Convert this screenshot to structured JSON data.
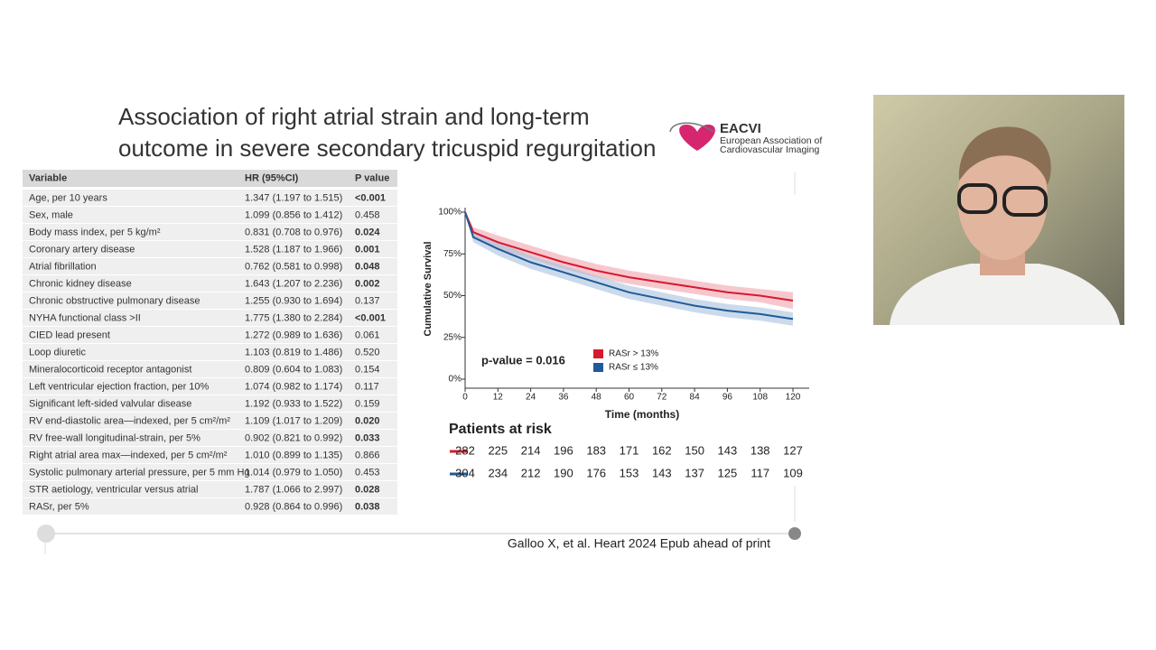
{
  "slide": {
    "title_lines": [
      "Association of right atrial strain and long-term",
      "outcome in severe secondary tricuspid regurgitation"
    ],
    "logo": {
      "name": "EACVI",
      "line1": "European Association of",
      "line2": "Cardiovascular Imaging"
    },
    "citation": "Galloo X, et al. Heart 2024 Epub ahead of print"
  },
  "table": {
    "header": [
      "Variable",
      "HR (95%CI)",
      "P value"
    ],
    "rows": [
      {
        "cells": [
          "Age, per 10 years",
          "1.347 (1.197 to 1.515)",
          "<0.001"
        ],
        "bold": true
      },
      {
        "cells": [
          "Sex, male",
          "1.099 (0.856 to 1.412)",
          "0.458"
        ],
        "bold": false
      },
      {
        "cells": [
          "Body mass index, per 5 kg/m²",
          "0.831 (0.708 to 0.976)",
          "0.024"
        ],
        "bold": true
      },
      {
        "cells": [
          "Coronary artery disease",
          "1.528 (1.187 to 1.966)",
          "0.001"
        ],
        "bold": true
      },
      {
        "cells": [
          "Atrial fibrillation",
          "0.762 (0.581 to 0.998)",
          "0.048"
        ],
        "bold": true
      },
      {
        "cells": [
          "Chronic kidney disease",
          "1.643 (1.207 to 2.236)",
          "0.002"
        ],
        "bold": true
      },
      {
        "cells": [
          "Chronic obstructive pulmonary disease",
          "1.255 (0.930 to 1.694)",
          "0.137"
        ],
        "bold": false
      },
      {
        "cells": [
          "NYHA functional class >II",
          "1.775 (1.380 to 2.284)",
          "<0.001"
        ],
        "bold": true
      },
      {
        "cells": [
          "CIED lead present",
          "1.272 (0.989 to 1.636)",
          "0.061"
        ],
        "bold": false
      },
      {
        "cells": [
          "Loop diuretic",
          "1.103 (0.819 to 1.486)",
          "0.520"
        ],
        "bold": false
      },
      {
        "cells": [
          "Mineralocorticoid receptor antagonist",
          "0.809 (0.604 to 1.083)",
          "0.154"
        ],
        "bold": false
      },
      {
        "cells": [
          "Left ventricular ejection fraction, per 10%",
          "1.074 (0.982 to 1.174)",
          "0.117"
        ],
        "bold": false
      },
      {
        "cells": [
          "Significant left-sided valvular disease",
          "1.192 (0.933 to 1.522)",
          "0.159"
        ],
        "bold": false
      },
      {
        "cells": [
          "RV end-diastolic area—indexed, per 5 cm²/m²",
          "1.109 (1.017 to 1.209)",
          "0.020"
        ],
        "bold": true
      },
      {
        "cells": [
          "RV free-wall longitudinal-strain, per 5%",
          "0.902 (0.821 to 0.992)",
          "0.033"
        ],
        "bold": true
      },
      {
        "cells": [
          "Right atrial area max—indexed, per 5 cm²/m²",
          "1.010 (0.899 to 1.135)",
          "0.866"
        ],
        "bold": false
      },
      {
        "cells": [
          "Systolic pulmonary arterial pressure, per 5 mm Hg",
          "1.014 (0.979 to 1.050)",
          "0.453"
        ],
        "bold": false
      },
      {
        "cells": [
          "STR aetiology, ventricular versus atrial",
          "1.787 (1.066 to 2.997)",
          "0.028"
        ],
        "bold": true
      },
      {
        "cells": [
          "RASr, per 5%",
          "0.928 (0.864 to 0.996)",
          "0.038"
        ],
        "bold": true
      }
    ]
  },
  "chart_data": {
    "type": "line",
    "xlabel": "Time (months)",
    "ylabel": "Cumulative Survival",
    "annotation": "p-value  = 0.016",
    "x": [
      0,
      3,
      12,
      24,
      36,
      48,
      60,
      72,
      84,
      96,
      108,
      120
    ],
    "series": [
      {
        "name": "RASr > 13%",
        "color": "#d7192f",
        "band_color": "#f0a3ac",
        "values": [
          100,
          88,
          82,
          76,
          70,
          65,
          61,
          58,
          55,
          52,
          50,
          47
        ],
        "ci_lower": [
          100,
          85,
          78,
          72,
          66,
          61,
          57,
          54,
          51,
          48,
          46,
          42
        ],
        "ci_upper": [
          100,
          91,
          86,
          80,
          74,
          69,
          65,
          62,
          59,
          56,
          54,
          52
        ]
      },
      {
        "name": "RASr ≤ 13%",
        "color": "#1f5a9a",
        "band_color": "#a9c1de",
        "values": [
          100,
          85,
          78,
          70,
          64,
          58,
          52,
          48,
          44,
          41,
          39,
          36
        ],
        "ci_lower": [
          100,
          82,
          74,
          66,
          60,
          54,
          48,
          44,
          40,
          37,
          35,
          32
        ],
        "ci_upper": [
          100,
          88,
          82,
          74,
          68,
          62,
          56,
          52,
          48,
          45,
          43,
          40
        ]
      }
    ],
    "xlim": [
      0,
      120
    ],
    "ylim": [
      0,
      100
    ],
    "xticks": [
      0,
      12,
      24,
      36,
      48,
      60,
      72,
      84,
      96,
      108,
      120
    ],
    "yticks": [
      {
        "value": 0,
        "label": "0%"
      },
      {
        "value": 25,
        "label": "25%"
      },
      {
        "value": 50,
        "label": "50%"
      },
      {
        "value": 75,
        "label": "75%"
      },
      {
        "value": 100,
        "label": "100%"
      }
    ]
  },
  "risk_table": {
    "title": "Patients at risk",
    "rows": [
      {
        "color": "#d7192f",
        "counts": [
          282,
          225,
          214,
          196,
          183,
          171,
          162,
          150,
          143,
          138,
          127
        ]
      },
      {
        "color": "#1f5a9a",
        "counts": [
          304,
          234,
          212,
          190,
          176,
          153,
          143,
          137,
          125,
          117,
          109
        ]
      }
    ]
  }
}
